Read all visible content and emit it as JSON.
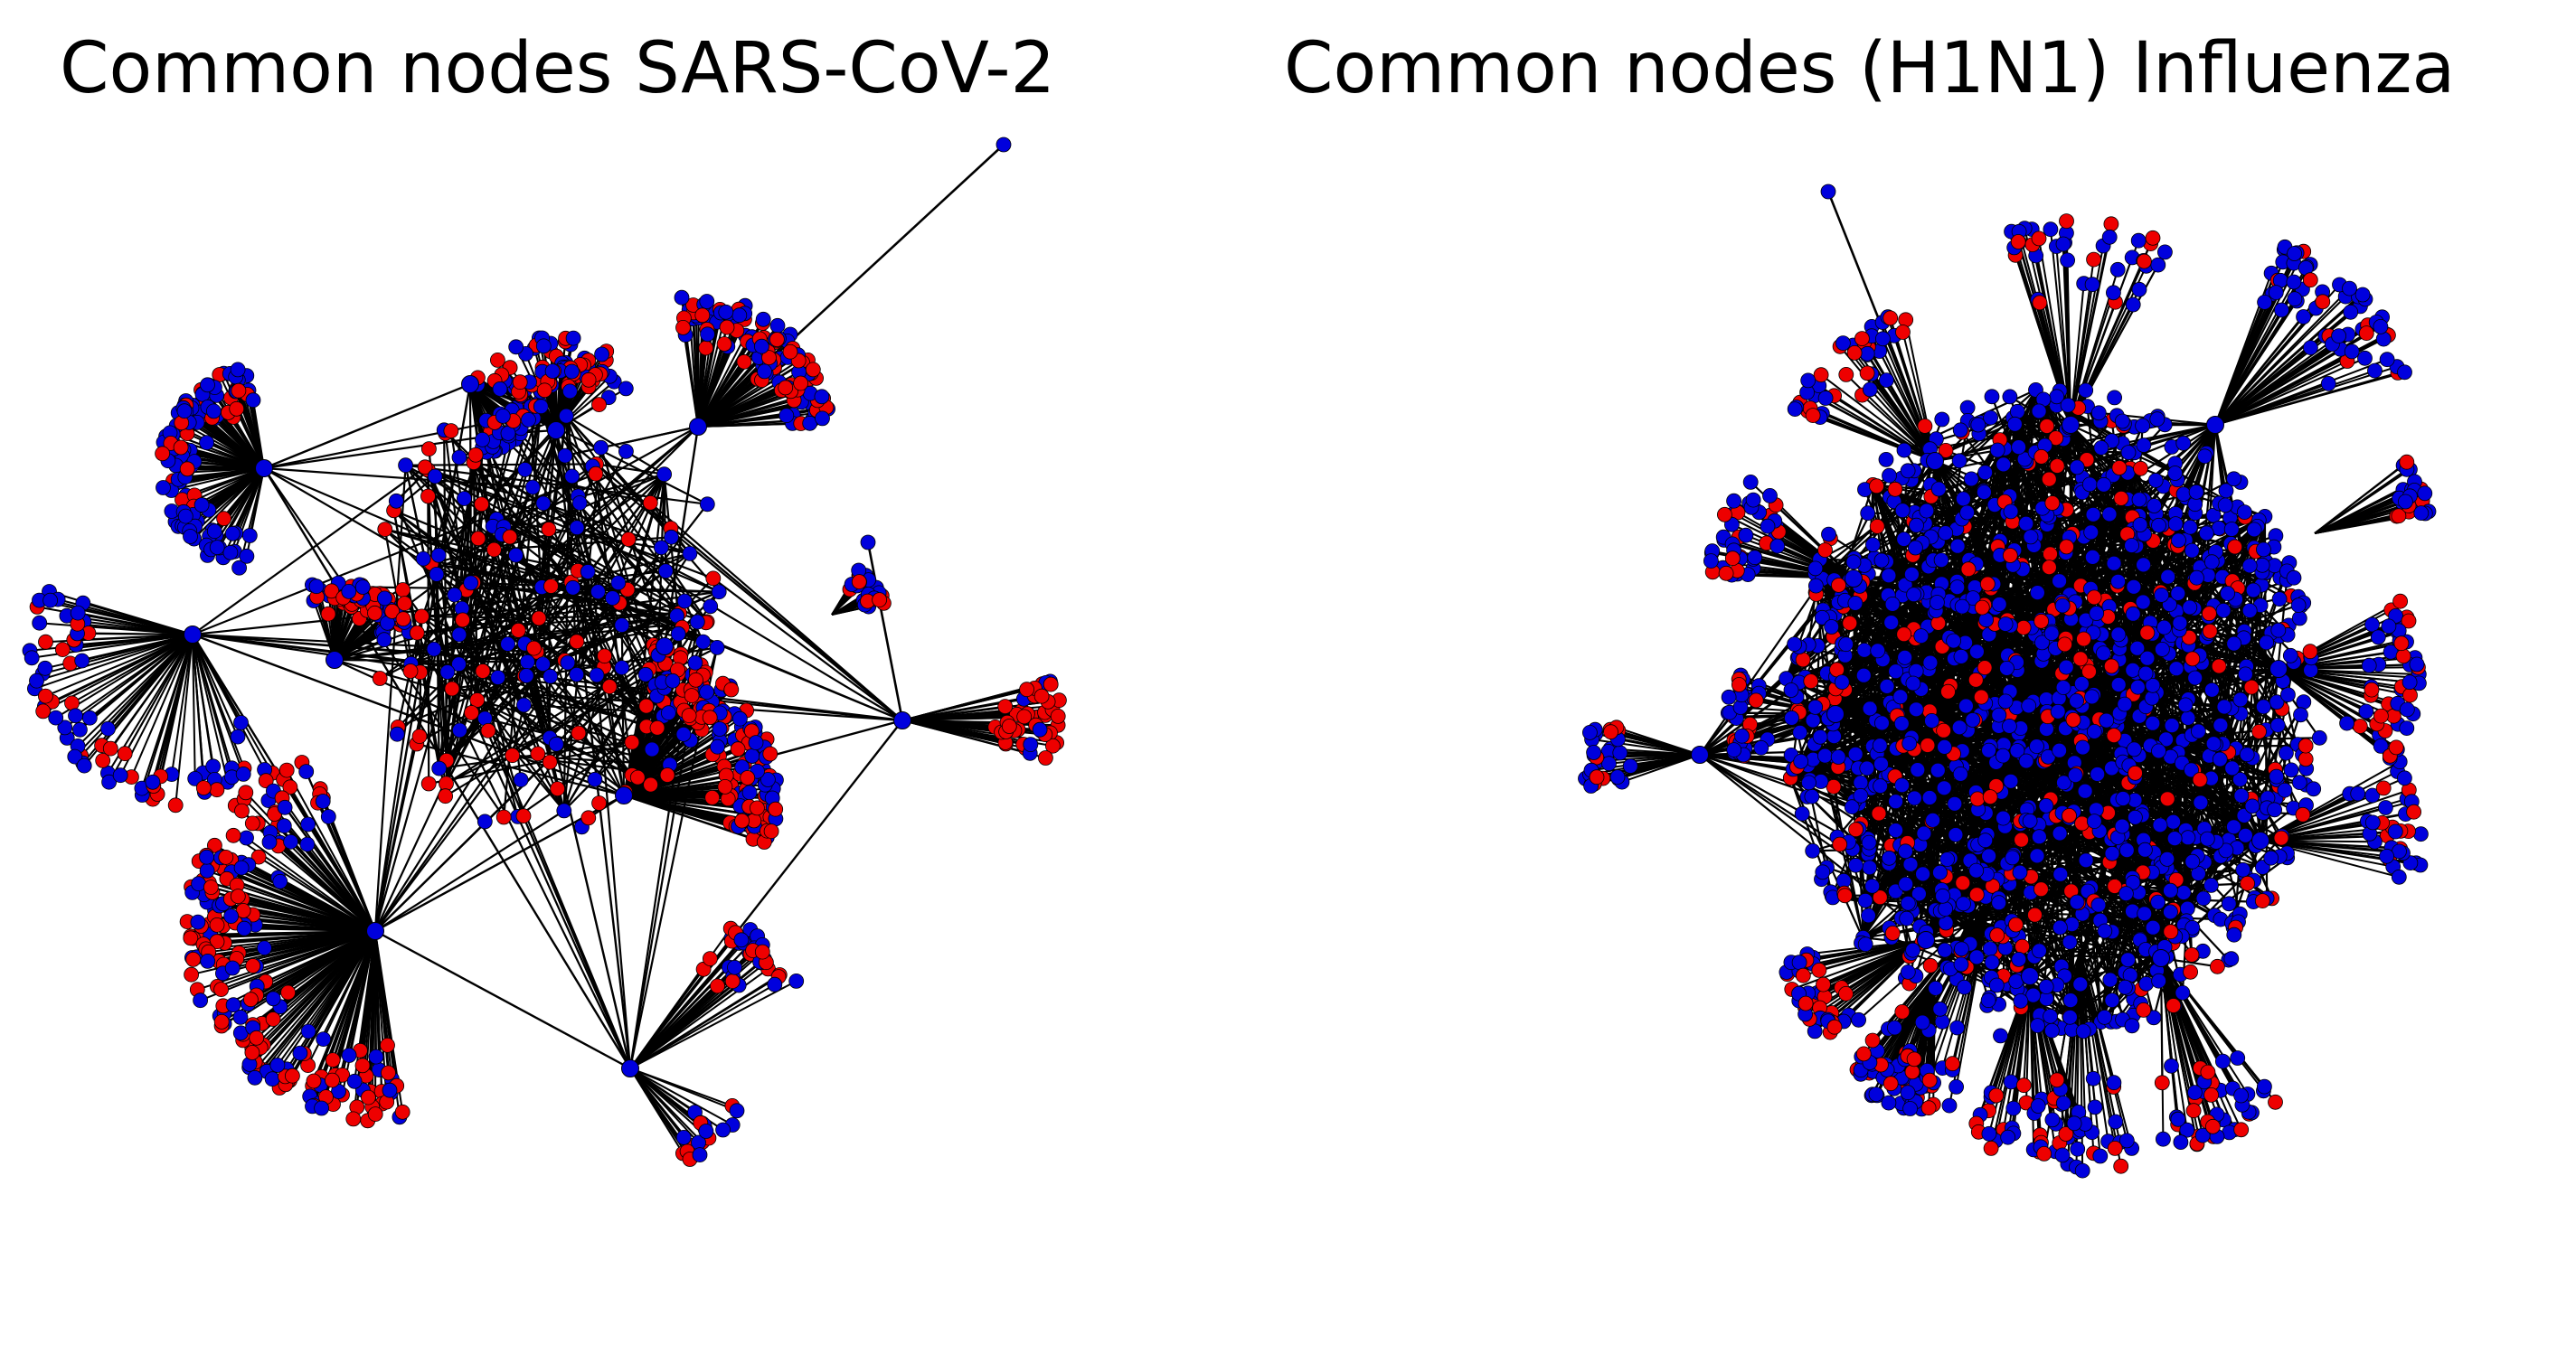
{
  "figure": {
    "panels": [
      {
        "title": "Common nodes SARS-CoV-2",
        "graph": {
          "seed": 7,
          "clusters": [
            {
              "hub": [
                292,
                518
              ],
              "radius": 115,
              "count": 130,
              "span": [
                100,
                265
              ],
              "red": 0.2
            },
            {
              "hub": [
                213,
                702
              ],
              "radius": 190,
              "count": 75,
              "span": [
                60,
                200
              ],
              "red": 0.35
            },
            {
              "hub": [
                520,
                425
              ],
              "radius": 80,
              "count": 45,
              "span": [
                0,
                80
              ],
              "red": 0.25
            },
            {
              "hub": [
                615,
                476
              ],
              "radius": 105,
              "count": 35,
              "span": [
                210,
                330
              ],
              "red": 0.55
            },
            {
              "hub": [
                772,
                472
              ],
              "radius": 145,
              "count": 110,
              "span": [
                260,
                360
              ],
              "red": 0.5
            },
            {
              "hub": [
                415,
                1030
              ],
              "radius": 210,
              "count": 210,
              "span": [
                80,
                250
              ],
              "red": 0.55
            },
            {
              "hub": [
                690,
                880
              ],
              "radius": 170,
              "count": 160,
              "span": [
                280,
                380
              ],
              "red": 0.55
            },
            {
              "hub": [
                998,
                797
              ],
              "radius": 175,
              "count": 45,
              "span": [
                345,
                15
              ],
              "red": 0.75
            },
            {
              "hub": [
                697,
                1182
              ],
              "radius": 210,
              "count": 35,
              "span": [
                305,
                335
              ],
              "red": 0.4
            },
            {
              "hub": [
                697,
                1182
              ],
              "radius": 130,
              "count": 20,
              "span": [
                20,
                60
              ],
              "red": 0.45
            },
            {
              "hub": [
                370,
                730
              ],
              "radius": 90,
              "count": 70,
              "span": [
                250,
                340
              ],
              "red": 0.5
            },
            {
              "hub": [
                615,
                476
              ],
              "radius": 80,
              "count": 28,
              "span": [
                250,
                310
              ],
              "red": 0.65
            },
            {
              "hub": [
                920,
                680
              ],
              "radius": 60,
              "count": 30,
              "span": [
                300,
                360
              ],
              "red": 0.6
            }
          ],
          "hubs": [
            [
              292,
              518
            ],
            [
              213,
              702
            ],
            [
              520,
              425
            ],
            [
              615,
              476
            ],
            [
              772,
              472
            ],
            [
              415,
              1030
            ],
            [
              690,
              880
            ],
            [
              998,
              797
            ],
            [
              697,
              1182
            ],
            [
              370,
              730
            ],
            [
              735,
              715
            ]
          ],
          "core": {
            "center": [
              600,
              670
            ],
            "radius": 230,
            "count": 180,
            "red": 0.5,
            "edges": 360
          },
          "outliers": [
            [
              1110,
              160
            ],
            [
              960,
              600
            ]
          ]
        }
      },
      {
        "title": "Common nodes (H1N1) Influenza",
        "graph": {
          "seed": 23,
          "clusters": [
            {
              "hub": [
                2030,
                790
              ],
              "radius": 120,
              "count": 32,
              "span": [
                155,
                205
              ],
              "red": 0.25
            },
            {
              "hub": [
                1880,
                835
              ],
              "radius": 130,
              "count": 30,
              "span": [
                160,
                200
              ],
              "red": 0.25
            },
            {
              "hub": [
                2130,
                1040
              ],
              "radius": 160,
              "count": 40,
              "span": [
                135,
                175
              ],
              "red": 0.35
            },
            {
              "hub": [
                2140,
                1080
              ],
              "radius": 150,
              "count": 45,
              "span": [
                90,
                130
              ],
              "red": 0.3
            },
            {
              "hub": [
                2245,
                1080
              ],
              "radius": 200,
              "count": 40,
              "span": [
                70,
                110
              ],
              "red": 0.35
            },
            {
              "hub": [
                2390,
                1060
              ],
              "radius": 210,
              "count": 45,
              "span": [
                50,
                90
              ],
              "red": 0.3
            },
            {
              "hub": [
                2500,
                930
              ],
              "radius": 180,
              "count": 35,
              "span": [
                330,
                15
              ],
              "red": 0.25
            },
            {
              "hub": [
                2520,
                740
              ],
              "radius": 160,
              "count": 55,
              "span": [
                330,
                40
              ],
              "red": 0.35
            },
            {
              "hub": [
                2560,
                590
              ],
              "radius": 130,
              "count": 25,
              "span": [
                320,
                350
              ],
              "red": 0.25
            },
            {
              "hub": [
                2450,
                470
              ],
              "radius": 220,
              "count": 60,
              "span": [
                290,
                345
              ],
              "red": 0.2
            },
            {
              "hub": [
                2290,
                470
              ],
              "radius": 230,
              "count": 40,
              "span": [
                250,
                300
              ],
              "red": 0.2
            },
            {
              "hub": [
                2140,
                510
              ],
              "radius": 170,
              "count": 40,
              "span": [
                200,
                260
              ],
              "red": 0.25
            },
            {
              "hub": [
                2050,
                640
              ],
              "radius": 160,
              "count": 45,
              "span": [
                180,
                225
              ],
              "red": 0.3
            },
            {
              "hub": [
                2200,
                1000
              ],
              "radius": 230,
              "count": 30,
              "span": [
                100,
                140
              ],
              "red": 0.25
            },
            {
              "hub": [
                2300,
                1050
              ],
              "radius": 250,
              "count": 25,
              "span": [
                75,
                100
              ],
              "red": 0.3
            }
          ],
          "hubs": [
            [
              2030,
              790
            ],
            [
              1880,
              835
            ],
            [
              2130,
              1040
            ],
            [
              2245,
              1080
            ],
            [
              2390,
              1060
            ],
            [
              2500,
              930
            ],
            [
              2520,
              740
            ],
            [
              2450,
              470
            ],
            [
              2290,
              470
            ],
            [
              2140,
              510
            ],
            [
              2050,
              640
            ]
          ],
          "core": {
            "center": [
              2270,
              790
            ],
            "radius": 330,
            "count": 1200,
            "red": 0.22,
            "edges": 1400
          },
          "outliers": [
            [
              2022,
              212
            ],
            [
              2282,
              270
            ]
          ]
        }
      }
    ],
    "node_colors": {
      "blue": "#0000dd",
      "red": "#ee0000"
    },
    "edge_color": "#000000",
    "node_outline": "#000000"
  }
}
